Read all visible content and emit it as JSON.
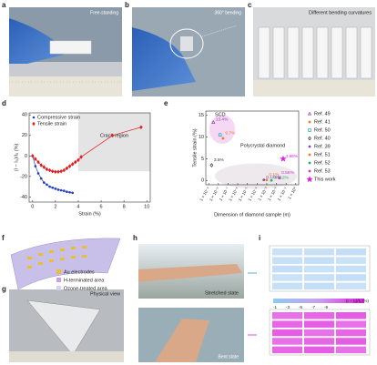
{
  "panel_labels": [
    "a",
    "b",
    "c",
    "d",
    "e",
    "f",
    "g",
    "h",
    "i"
  ],
  "captions": {
    "a": "Free-standing",
    "b": "360° bending",
    "c": "Different bending curvatures",
    "g": "Physical view",
    "h_top": "Stretched state",
    "h_bottom": "Bent state"
  },
  "f_legend": [
    "Au electrodes",
    "H-terminated area",
    "Ozone-treated area"
  ],
  "colorbar": {
    "label": "(I − I₀)/I₀ (%)",
    "ticks": [
      -1,
      -3,
      -5,
      -7,
      -9
    ]
  },
  "chart_data": [
    {
      "type": "line",
      "xlabel": "Strain (%)",
      "ylabel": "(I − I₀)/I₀ (%)",
      "xlim": [
        -0.3,
        10.3
      ],
      "ylim": [
        -45,
        42
      ],
      "xticks": [
        0,
        2,
        4,
        6,
        8,
        10
      ],
      "yticks": [
        -40,
        -20,
        0,
        20,
        40
      ],
      "shaded_region": {
        "x": [
          4,
          10.3
        ],
        "y": [
          -15,
          42
        ],
        "label": "Crack region"
      },
      "legend": "upper left",
      "series": [
        {
          "name": "Compressive strain",
          "color": "#1f3fbf",
          "marker": "circle",
          "x": [
            0,
            0.25,
            0.5,
            0.75,
            1,
            1.25,
            1.5,
            1.75,
            2,
            2.25,
            2.5,
            2.75,
            3,
            3.25,
            3.5
          ],
          "values": [
            0,
            -10,
            -17,
            -22,
            -26,
            -28,
            -30,
            -31,
            -32,
            -33,
            -33.5,
            -34,
            -35,
            -35.5,
            -36
          ]
        },
        {
          "name": "Tensile strain",
          "color": "#e02020",
          "marker": "diamond",
          "x": [
            0,
            0.25,
            0.5,
            0.75,
            1,
            1.25,
            1.5,
            1.75,
            2,
            2.25,
            2.5,
            2.75,
            3,
            3.25,
            3.5,
            3.75,
            4,
            4.25,
            7,
            9.5
          ],
          "values": [
            0,
            -3,
            -6,
            -9,
            -11,
            -13,
            -14,
            -15,
            -15.5,
            -15.5,
            -15,
            -14,
            -12,
            -10,
            -8,
            -6,
            -4,
            -1,
            20,
            28
          ]
        }
      ]
    },
    {
      "type": "scatter",
      "xlabel": "Dimension of diamond sample (m)",
      "ylabel": "Tensile strain (%)",
      "xlog": true,
      "xlim": [
        5e-10,
        2
      ],
      "ylim": [
        -1,
        16
      ],
      "xticks": [
        {
          "value": 1e-09,
          "label": "1 × 10⁻⁹"
        },
        {
          "value": 1e-08,
          "label": "1 × 10⁻⁸"
        },
        {
          "value": 1e-07,
          "label": "1 × 10⁻⁷"
        },
        {
          "value": 1e-06,
          "label": "1 × 10⁻⁶"
        },
        {
          "value": 1e-05,
          "label": "1 × 10⁻⁵"
        },
        {
          "value": 0.0001,
          "label": "1 × 10⁻⁴"
        },
        {
          "value": 0.001,
          "label": "1 × 10⁻³"
        },
        {
          "value": 0.01,
          "label": "1 × 10⁻²"
        },
        {
          "value": 0.1,
          "label": "1 × 10⁻¹"
        },
        {
          "value": 1,
          "label": "1 × 10⁰"
        }
      ],
      "yticks": [
        0,
        5,
        10,
        15
      ],
      "annotations": [
        "SCD",
        "Polycrystal diamond"
      ],
      "legend": "right",
      "series": [
        {
          "name": "Ref. 49",
          "color": "#8e44ad",
          "marker": "triangle",
          "x": [
            3e-09
          ],
          "values": [
            13.4
          ],
          "value_labels": [
            "13.4%"
          ]
        },
        {
          "name": "Ref. 41",
          "color": "#e67e22",
          "marker": "circle",
          "x": [
            3e-08
          ],
          "values": [
            9.7
          ],
          "value_labels": [
            "9.7%"
          ]
        },
        {
          "name": "Ref. 50",
          "color": "#17a2b8",
          "marker": "square",
          "x": [
            1.5e-08
          ],
          "values": [
            10.5
          ]
        },
        {
          "name": "Ref. 40",
          "color": "#333333",
          "marker": "diamond",
          "x": [
            2e-09
          ],
          "values": [
            3.5
          ],
          "value_labels": [
            "3.5%"
          ]
        },
        {
          "name": "Ref. 39",
          "color": "#8e44ad",
          "marker": "circle",
          "x": [
            0.0005
          ],
          "values": [
            0.125
          ],
          "value_labels": [
            "0.125%"
          ]
        },
        {
          "name": "Ref. 51",
          "color": "#e67e22",
          "marker": "circle",
          "x": [
            0.001
          ],
          "values": [
            0.1
          ],
          "value_labels": [
            "0.1%"
          ]
        },
        {
          "name": "Ref. 52",
          "color": "#27ae60",
          "marker": "circle",
          "x": [
            0.003
          ],
          "values": [
            0.012
          ],
          "value_labels": [
            "0.012%"
          ]
        },
        {
          "name": "Ref. 53",
          "color": "#d633d6",
          "marker": "circle",
          "x": [
            0.02
          ],
          "values": [
            0.55
          ],
          "value_labels": [
            "0.55%"
          ]
        },
        {
          "name": "This work",
          "color": "#e020e0",
          "marker": "star",
          "x": [
            0.05
          ],
          "values": [
            4.98
          ],
          "value_labels": [
            "4.98%"
          ]
        }
      ]
    }
  ]
}
